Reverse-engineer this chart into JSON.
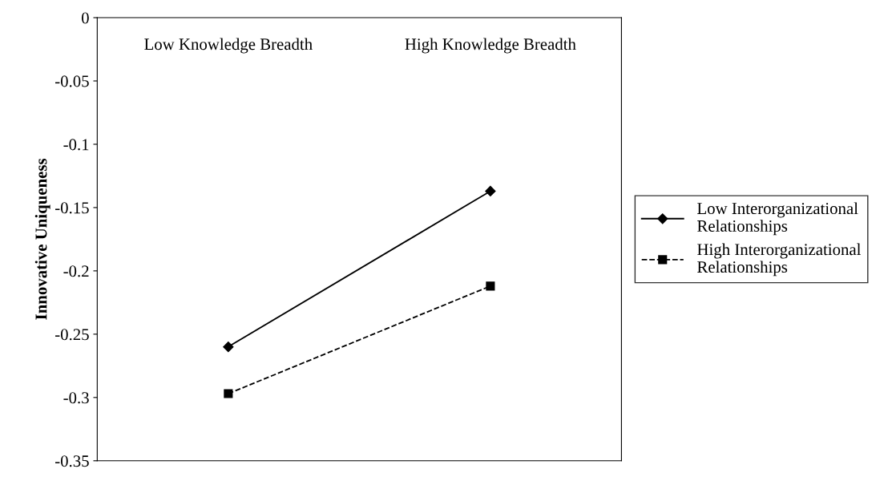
{
  "chart_data": {
    "type": "line",
    "ylabel": "Innovative Uniqueness",
    "categories": [
      "Low Knowledge Breadth",
      "High Knowledge Breadth"
    ],
    "series": [
      {
        "name": "Low Interorganizational Relationships",
        "color": "#000000",
        "values": [
          -0.26,
          -0.137
        ],
        "marker": "diamond",
        "line_style": "solid"
      },
      {
        "name": "High Interorganizational Relationships",
        "color": "#000000",
        "values": [
          -0.297,
          -0.212
        ],
        "marker": "square",
        "line_style": "dashed"
      }
    ],
    "ylim": [
      -0.35,
      0
    ],
    "yticks": [
      -0.35,
      -0.3,
      -0.25,
      -0.2,
      -0.15,
      -0.1,
      -0.05,
      0
    ],
    "grid": false,
    "legend": "right"
  }
}
